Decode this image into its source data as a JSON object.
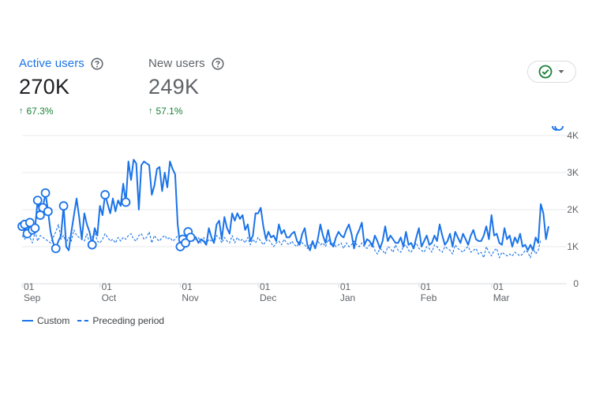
{
  "metrics": [
    {
      "label": "Active users",
      "value": "270K",
      "change": "67.3%"
    },
    {
      "label": "New users",
      "value": "249K",
      "change": "57.1%"
    }
  ],
  "icons": {
    "help": "help-circle-icon",
    "compare": "check-circle-icon",
    "dropdown": "caret-down-icon"
  },
  "colors": {
    "accent": "#1a73e8",
    "positive": "#188038",
    "grid": "#e8eaed",
    "text_muted": "#5f6368"
  },
  "chart_data": {
    "type": "line",
    "y_ticks": [
      "0",
      "1K",
      "2K",
      "3K",
      "4K"
    ],
    "ylim": [
      0,
      4000
    ],
    "x_ticks": [
      {
        "day": "01",
        "month": "Sep",
        "index": 0
      },
      {
        "day": "01",
        "month": "Oct",
        "index": 30
      },
      {
        "day": "01",
        "month": "Nov",
        "index": 61
      },
      {
        "day": "01",
        "month": "Dec",
        "index": 91
      },
      {
        "day": "01",
        "month": "Jan",
        "index": 122
      },
      {
        "day": "01",
        "month": "Feb",
        "index": 153
      },
      {
        "day": "01",
        "month": "Mar",
        "index": 181
      }
    ],
    "legend_position": "bottom-left",
    "series": [
      {
        "name": "Custom",
        "style": "solid",
        "values": [
          1550,
          1600,
          1350,
          1650,
          1450,
          1500,
          2250,
          1850,
          2050,
          2450,
          1950,
          1400,
          1100,
          950,
          1150,
          1300,
          2100,
          1000,
          900,
          1400,
          1850,
          2300,
          1800,
          1200,
          1900,
          1600,
          1400,
          1050,
          1500,
          1300,
          2100,
          1850,
          2400,
          2150,
          1900,
          2300,
          1950,
          2250,
          2100,
          2700,
          2200,
          3300,
          2800,
          3350,
          3250,
          2000,
          3200,
          3300,
          3250,
          3200,
          2400,
          2650,
          3100,
          3150,
          2500,
          3000,
          2600,
          3300,
          3100,
          2950,
          1600,
          1000,
          1200,
          1100,
          1400,
          1250,
          1300,
          1250,
          1100,
          1200,
          1150,
          1050,
          1500,
          1250,
          1100,
          1600,
          1700,
          1200,
          1800,
          1500,
          1350,
          1900,
          1700,
          1900,
          1750,
          1850,
          1450,
          1600,
          1150,
          1300,
          1900,
          1900,
          2050,
          1550,
          1200,
          1400,
          1250,
          1300,
          1150,
          1600,
          1350,
          1450,
          1250,
          1250,
          1350,
          1400,
          1150,
          1050,
          1350,
          1500,
          1050,
          900,
          1150,
          950,
          1200,
          1600,
          1300,
          1100,
          1450,
          1100,
          1000,
          1250,
          1400,
          1300,
          1250,
          1450,
          1600,
          1350,
          950,
          1300,
          1450,
          1650,
          1050,
          1200,
          1150,
          1000,
          1300,
          1150,
          950,
          1150,
          1550,
          1150,
          1300,
          1200,
          1100,
          1100,
          1250,
          1000,
          1400,
          1050,
          1100,
          950,
          1250,
          1500,
          1000,
          1150,
          1300,
          1050,
          1100,
          1300,
          1150,
          1600,
          1300,
          1050,
          1150,
          1350,
          1000,
          1400,
          1250,
          1100,
          1350,
          1200,
          1050,
          1300,
          1450,
          1200,
          1150,
          1150,
          1300,
          1550,
          1200,
          1850,
          1300,
          1350,
          1100,
          1050,
          1500,
          1200,
          1300,
          1000,
          1250,
          1100,
          1350,
          1000,
          1050,
          900,
          1050,
          900,
          1250,
          1100,
          2150,
          1900,
          1200,
          1550
        ]
      },
      {
        "name": "Preceding period",
        "style": "dashed",
        "values": [
          1300,
          1200,
          1350,
          1250,
          1100,
          1400,
          1150,
          1300,
          1250,
          1200,
          1150,
          1100,
          1250,
          1400,
          1600,
          1200,
          1300,
          1100,
          1250,
          1150,
          1450,
          1300,
          1250,
          1200,
          1150,
          1350,
          1100,
          1250,
          1400,
          1150,
          1100,
          1200,
          1350,
          1250,
          1150,
          1200,
          1100,
          1250,
          1150,
          1250,
          1200,
          1300,
          1350,
          1200,
          1150,
          1300,
          1350,
          1200,
          1250,
          1400,
          1100,
          1300,
          1200,
          1150,
          1250,
          1300,
          1200,
          1250,
          1150,
          1200,
          1300,
          1250,
          1100,
          1150,
          1300,
          1200,
          1150,
          1200,
          1250,
          1100,
          1250,
          1050,
          1200,
          1150,
          1100,
          1300,
          1250,
          1100,
          1250,
          1150,
          1100,
          1300,
          1100,
          1250,
          1150,
          1200,
          1100,
          1250,
          1050,
          1200,
          1100,
          1250,
          1150,
          1050,
          1150,
          1200,
          1100,
          1000,
          1100,
          1150,
          1050,
          1200,
          1100,
          1050,
          1150,
          1050,
          1000,
          1150,
          1100,
          1050,
          950,
          1050,
          1100,
          1000,
          1150,
          1050,
          1100,
          1000,
          1200,
          1050,
          1100,
          1000,
          1050,
          1100,
          950,
          1100,
          1000,
          1050,
          1150,
          1050,
          1000,
          1100,
          1000,
          950,
          1050,
          1100,
          900,
          800,
          950,
          900,
          800,
          1000,
          950,
          850,
          1050,
          900,
          850,
          1000,
          1050,
          900,
          850,
          1000,
          1100,
          950,
          900,
          850,
          1000,
          950,
          850,
          1050,
          1000,
          900,
          850,
          1000,
          950,
          900,
          800,
          1050,
          950,
          900,
          850,
          950,
          1000,
          850,
          900,
          950,
          800,
          850,
          700,
          1000,
          850,
          750,
          900,
          950,
          700,
          850,
          800,
          750,
          800,
          750,
          850,
          800,
          750,
          800,
          900,
          850,
          700,
          1000,
          800,
          900,
          1200
        ]
      }
    ],
    "markers": [
      {
        "series": "Custom",
        "index": 0
      },
      {
        "series": "Custom",
        "index": 1
      },
      {
        "series": "Custom",
        "index": 2
      },
      {
        "series": "Custom",
        "index": 3
      },
      {
        "series": "Custom",
        "index": 4
      },
      {
        "series": "Custom",
        "index": 5
      },
      {
        "series": "Custom",
        "index": 6
      },
      {
        "series": "Custom",
        "index": 7
      },
      {
        "series": "Custom",
        "index": 8
      },
      {
        "series": "Custom",
        "index": 9
      },
      {
        "series": "Custom",
        "index": 10
      },
      {
        "series": "Custom",
        "index": 13
      },
      {
        "series": "Custom",
        "index": 16
      },
      {
        "series": "Custom",
        "index": 27
      },
      {
        "series": "Custom",
        "index": 32
      },
      {
        "series": "Custom",
        "index": 40
      },
      {
        "series": "Custom",
        "index": 61
      },
      {
        "series": "Custom",
        "index": 62
      },
      {
        "series": "Custom",
        "index": 63
      },
      {
        "series": "Custom",
        "index": 64
      },
      {
        "series": "Custom",
        "index": 65
      },
      {
        "series": "Custom",
        "index": 206
      },
      {
        "series": "Custom",
        "index": 207
      }
    ]
  },
  "legend": {
    "custom": "Custom",
    "preceding": "Preceding period"
  }
}
